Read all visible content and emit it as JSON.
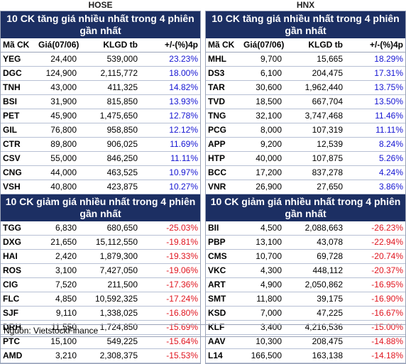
{
  "hose": {
    "exchange": "HOSE",
    "gainers_title": "10 CK tăng giá nhiều nhất trong 4 phiên gần nhất",
    "losers_title": "10 CK giảm giá nhiều nhất trong 4 phiên gần nhất",
    "headers": [
      "Mã CK",
      "Giá(07/06)",
      "KLGD tb",
      "+/-(%)4p"
    ],
    "gainers": [
      [
        "YEG",
        "24,400",
        "539,000",
        "23.23%"
      ],
      [
        "DGC",
        "124,900",
        "2,115,772",
        "18.00%"
      ],
      [
        "TNH",
        "43,000",
        "411,325",
        "14.82%"
      ],
      [
        "BSI",
        "31,900",
        "815,850",
        "13.93%"
      ],
      [
        "PET",
        "45,900",
        "1,475,650",
        "12.78%"
      ],
      [
        "GIL",
        "76,800",
        "958,850",
        "12.12%"
      ],
      [
        "CTR",
        "89,800",
        "906,025",
        "11.69%"
      ],
      [
        "CSV",
        "55,000",
        "846,250",
        "11.11%"
      ],
      [
        "CNG",
        "44,000",
        "463,525",
        "10.97%"
      ],
      [
        "VSH",
        "40,800",
        "423,875",
        "10.27%"
      ]
    ],
    "losers": [
      [
        "TGG",
        "6,830",
        "680,650",
        "-25.03%"
      ],
      [
        "DXG",
        "21,650",
        "15,112,550",
        "-19.81%"
      ],
      [
        "HAI",
        "2,420",
        "1,879,300",
        "-19.33%"
      ],
      [
        "ROS",
        "3,100",
        "7,427,050",
        "-19.06%"
      ],
      [
        "CIG",
        "7,520",
        "211,500",
        "-17.36%"
      ],
      [
        "FLC",
        "4,850",
        "10,592,325",
        "-17.24%"
      ],
      [
        "SJF",
        "9,110",
        "1,338,025",
        "-16.80%"
      ],
      [
        "DRH",
        "11,550",
        "1,724,850",
        "-15.69%"
      ],
      [
        "PTC",
        "15,100",
        "549,225",
        "-15.64%"
      ],
      [
        "AMD",
        "3,210",
        "2,308,375",
        "-15.53%"
      ]
    ]
  },
  "hnx": {
    "exchange": "HNX",
    "gainers_title": "10 CK tăng giá nhiều nhất trong 4 phiên gần nhất",
    "losers_title": "10 CK giảm giá nhiều nhất trong 4 phiên gần nhất",
    "headers": [
      "Mã CK",
      "Giá(07/06)",
      "KLGD tb",
      "+/-(%)4p"
    ],
    "gainers": [
      [
        "MHL",
        "9,700",
        "15,665",
        "18.29%"
      ],
      [
        "DS3",
        "6,100",
        "204,475",
        "17.31%"
      ],
      [
        "TAR",
        "30,600",
        "1,962,440",
        "13.75%"
      ],
      [
        "TVD",
        "18,500",
        "667,704",
        "13.50%"
      ],
      [
        "TNG",
        "32,100",
        "3,747,468",
        "11.46%"
      ],
      [
        "PCG",
        "8,000",
        "107,319",
        "11.11%"
      ],
      [
        "APP",
        "9,200",
        "12,539",
        "8.24%"
      ],
      [
        "HTP",
        "40,000",
        "107,875",
        "5.26%"
      ],
      [
        "BCC",
        "17,200",
        "837,278",
        "4.24%"
      ],
      [
        "VNR",
        "26,900",
        "27,650",
        "3.86%"
      ]
    ],
    "losers": [
      [
        "BII",
        "4,500",
        "2,088,663",
        "-26.23%"
      ],
      [
        "PBP",
        "13,100",
        "43,078",
        "-22.94%"
      ],
      [
        "CMS",
        "10,700",
        "69,728",
        "-20.74%"
      ],
      [
        "VKC",
        "4,300",
        "448,112",
        "-20.37%"
      ],
      [
        "ART",
        "4,900",
        "2,050,862",
        "-16.95%"
      ],
      [
        "SMT",
        "11,800",
        "39,175",
        "-16.90%"
      ],
      [
        "KSD",
        "7,000",
        "47,225",
        "-16.67%"
      ],
      [
        "KLF",
        "3,400",
        "4,216,536",
        "-15.00%"
      ],
      [
        "AAV",
        "10,300",
        "208,475",
        "-14.88%"
      ],
      [
        "L14",
        "166,500",
        "163,138",
        "-14.18%"
      ]
    ]
  },
  "source": "Nguồn: VietstockFinance"
}
